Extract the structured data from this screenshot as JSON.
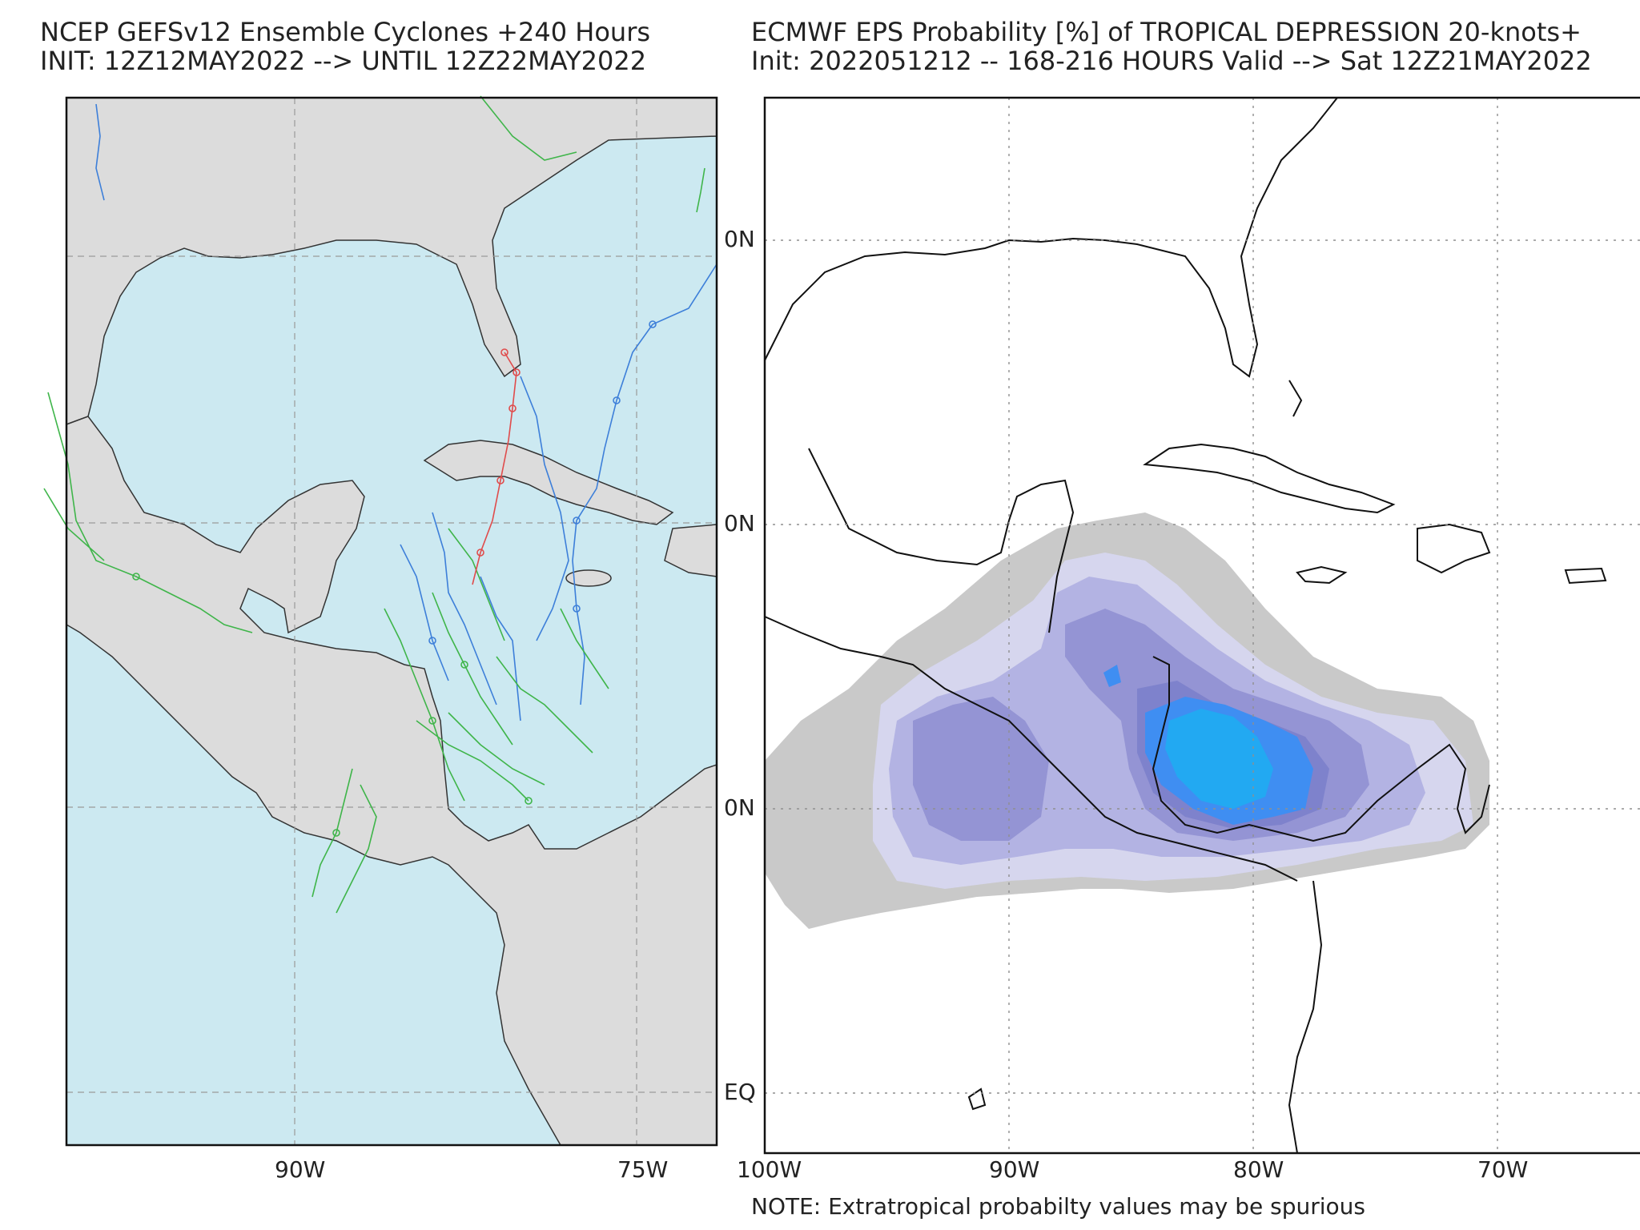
{
  "left_panel": {
    "title_line1": "NCEP GEFSv12 Ensemble Cyclones +240 Hours",
    "title_line2": "INIT: 12Z12MAY2022 --> UNTIL 12Z22MAY2022",
    "x_ticks": [
      "90W",
      "75W"
    ],
    "colors": {
      "ocean": "#cce9f1",
      "land": "#dcdcdc",
      "track_blue": "#3d7fd9",
      "track_green": "#3fb54a",
      "track_red": "#e04b4b"
    }
  },
  "right_panel": {
    "title_line1": "ECMWF EPS Probability [%] of TROPICAL DEPRESSION 20-knots+",
    "title_line2": "Init: 2022051212 -- 168-216 HOURS Valid --> Sat 12Z21MAY2022",
    "x_ticks": [
      "100W",
      "90W",
      "80W",
      "70W"
    ],
    "y_ticks": [
      "0N",
      "0N",
      "0N",
      "EQ"
    ],
    "note": "NOTE: Extratropical probabilty values may be spurious",
    "colors": {
      "p_low": "#c9c9c9",
      "p2": "#d6d6ee",
      "p3": "#b3b3e3",
      "p4": "#9494d4",
      "p5": "#7e82cc",
      "p6": "#3f8ef2",
      "p7": "#22a9f2"
    }
  }
}
